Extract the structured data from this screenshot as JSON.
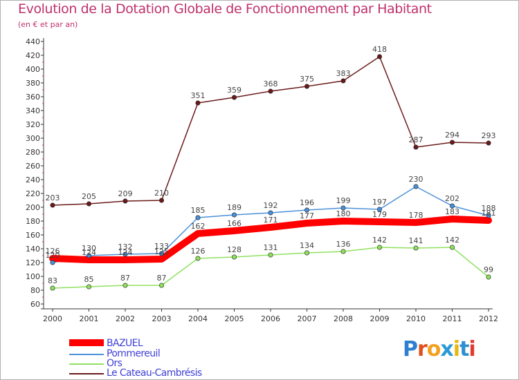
{
  "title": "Evolution de la Dotation Globale de Fonctionnement par Habitant",
  "subtitle": "(en € et par an)",
  "logo": {
    "letters": [
      "P",
      "r",
      "o",
      "x",
      "i",
      "t",
      "i"
    ],
    "colors": [
      "#2f7fd0",
      "#e0501c",
      "#f4a020",
      "#2a9ad8",
      "#e8b810",
      "#2f8fd0",
      "#e03a30"
    ]
  },
  "chart_data": {
    "type": "line",
    "title": "Evolution de la Dotation Globale de Fonctionnement par Habitant",
    "subtitle": "(en € et par an)",
    "xlabel": "",
    "ylabel": "",
    "ylim": [
      60,
      440
    ],
    "yticks": [
      60,
      80,
      100,
      120,
      140,
      160,
      180,
      200,
      220,
      240,
      260,
      280,
      300,
      320,
      340,
      360,
      380,
      400,
      420,
      440
    ],
    "grid": false,
    "x": [
      "2000",
      "2001",
      "2002",
      "2003",
      "2004",
      "2005",
      "2006",
      "2007",
      "2008",
      "2009",
      "2010",
      "2011",
      "2012"
    ],
    "series": [
      {
        "name": "BAZUEL",
        "color": "#ff0000",
        "values": [
          126,
          124,
          124,
          125,
          162,
          166,
          171,
          177,
          180,
          179,
          178,
          183,
          181
        ]
      },
      {
        "name": "Pommereuil",
        "color": "#4a90d9",
        "values": [
          120,
          130,
          132,
          133,
          185,
          189,
          192,
          196,
          199,
          197,
          230,
          202,
          188
        ]
      },
      {
        "name": "Ors",
        "color": "#90e060",
        "values": [
          83,
          85,
          87,
          87,
          126,
          128,
          131,
          134,
          136,
          142,
          141,
          142,
          99
        ]
      },
      {
        "name": "Le Cateau-Cambrésis",
        "color": "#6a1a1a",
        "values": [
          203,
          205,
          209,
          210,
          351,
          359,
          368,
          375,
          383,
          418,
          287,
          294,
          293
        ]
      }
    ],
    "legend_position": "bottom-left"
  }
}
